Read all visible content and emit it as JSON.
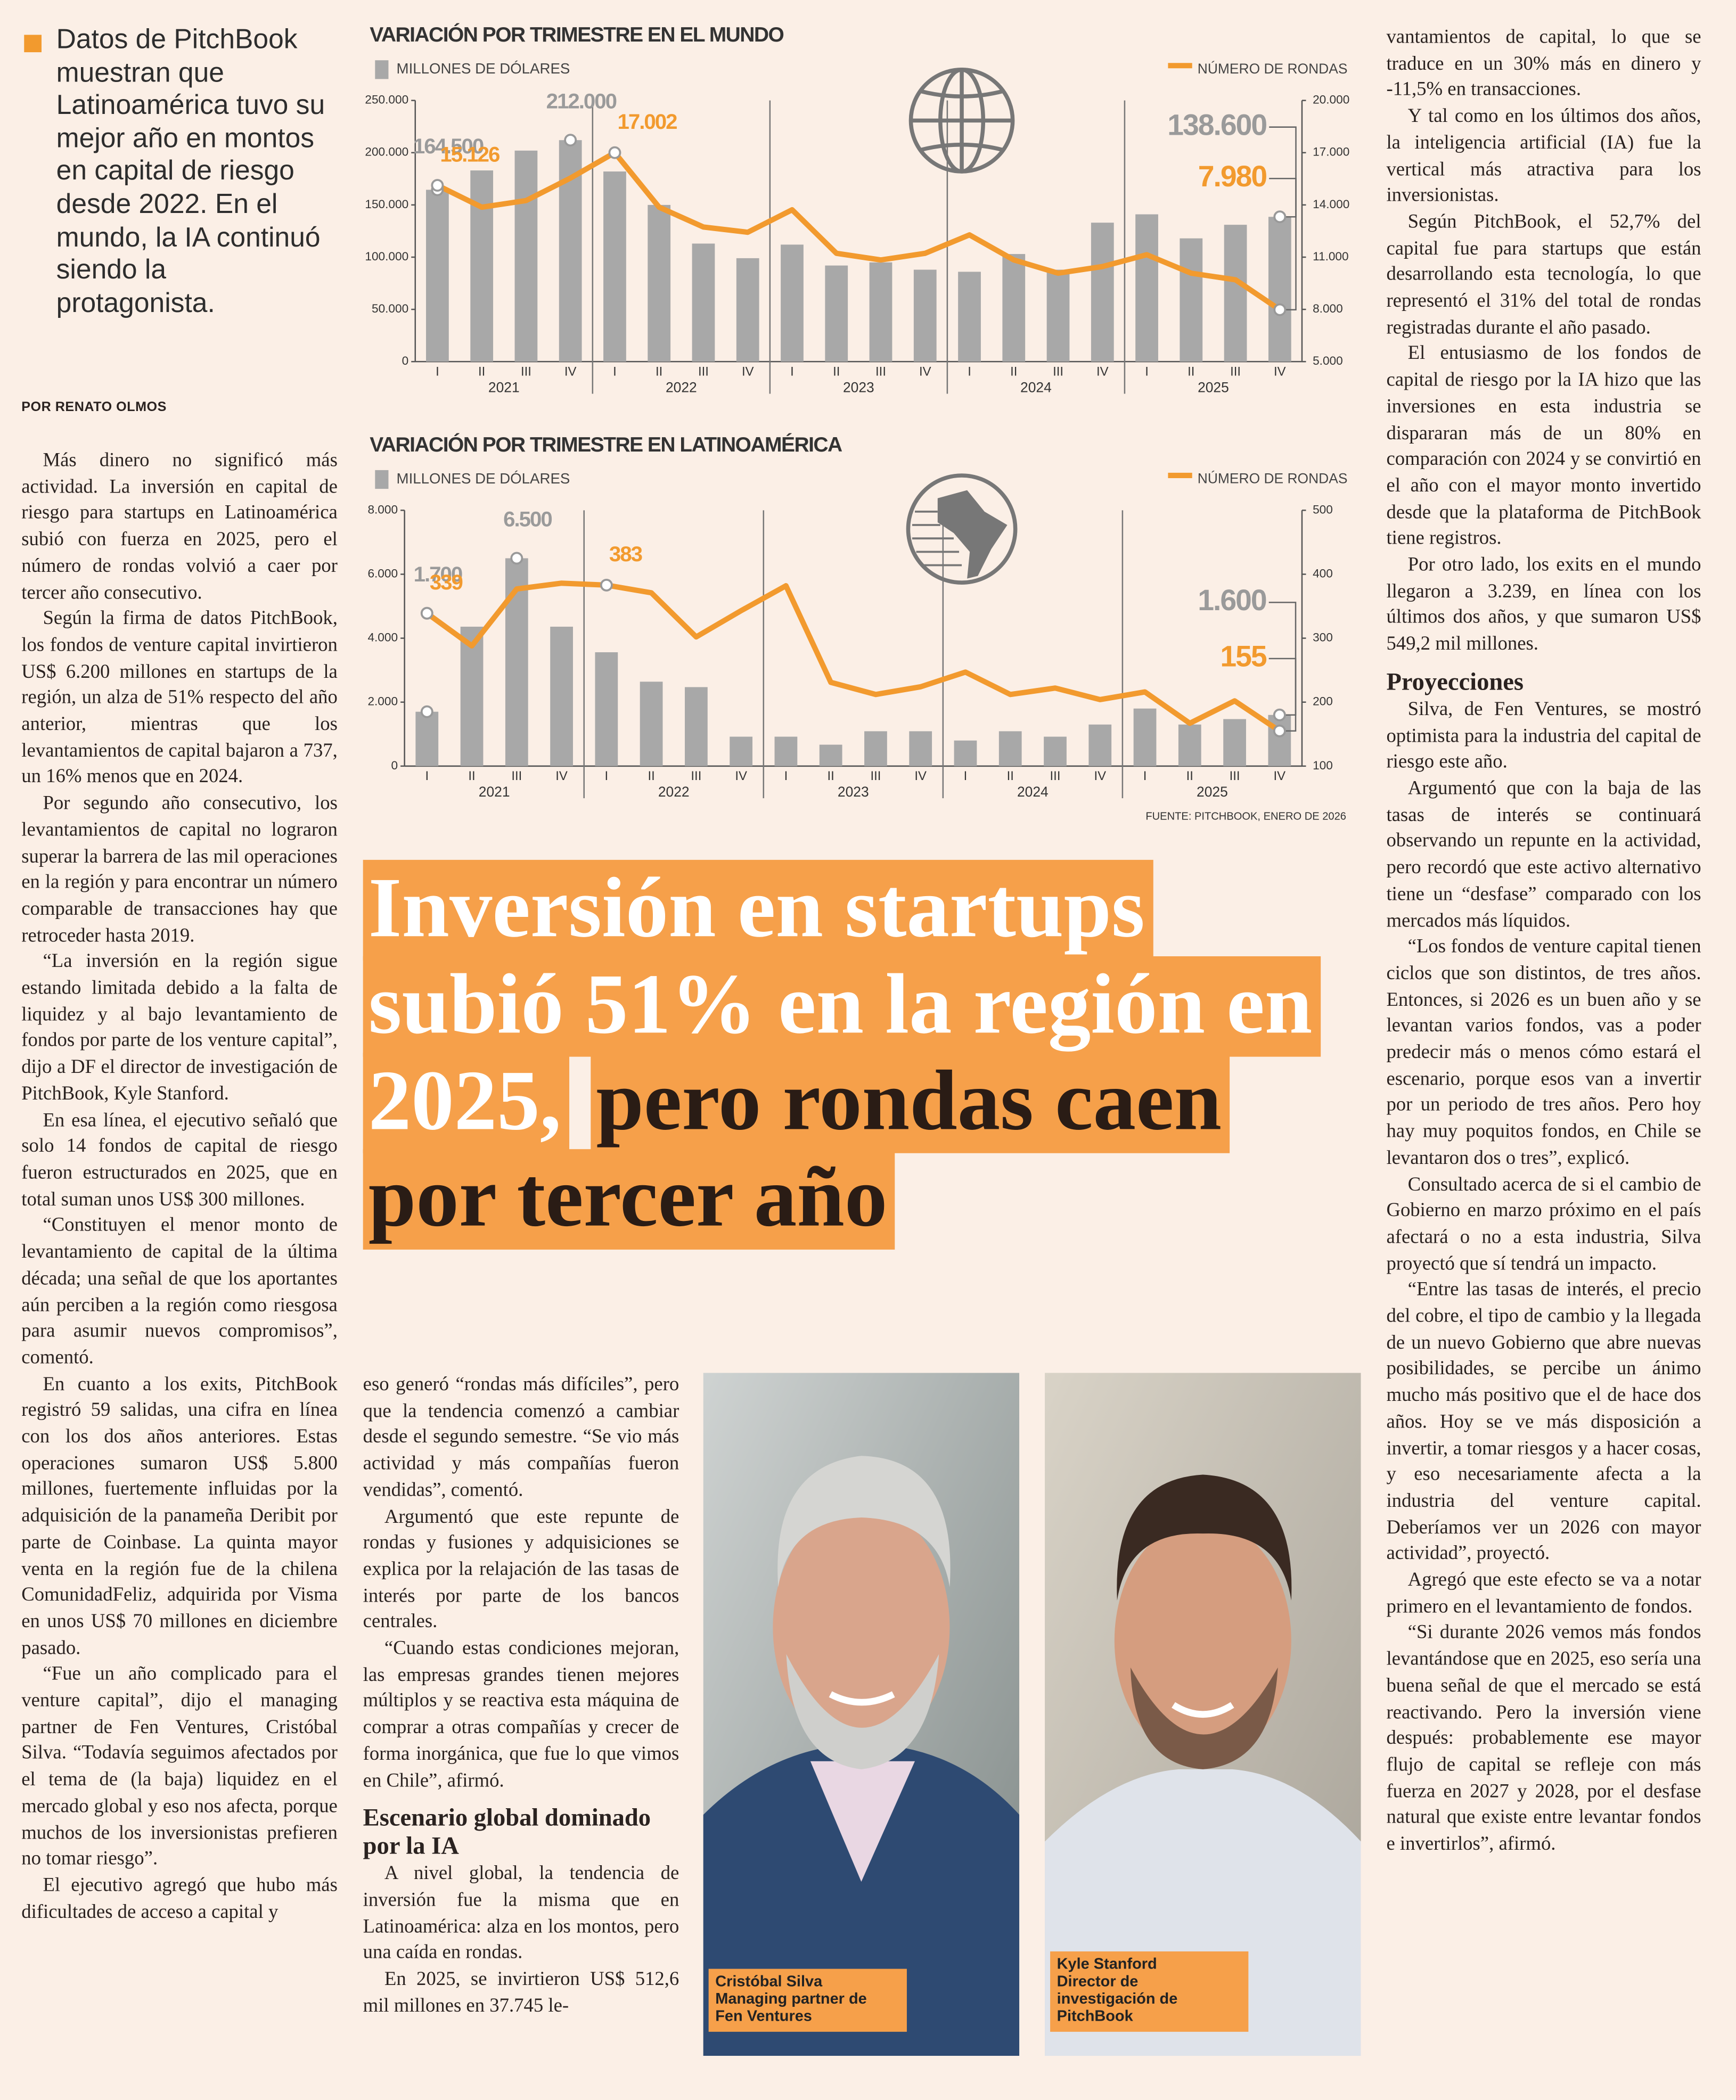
{
  "intro": "Datos de PitchBook muestran que Latinoamérica tuvo su mejor año en montos en capital de riesgo desde 2022. En el mundo, la IA continuó siendo la protagonista.",
  "byline": "POR RENATO OLMOS",
  "chart_data": [
    {
      "type": "combo",
      "title": "VARIACIÓN POR TRIMESTRE EN EL MUNDO",
      "categories": [
        "I",
        "II",
        "III",
        "IV",
        "I",
        "II",
        "III",
        "IV",
        "I",
        "II",
        "III",
        "IV",
        "I",
        "II",
        "III",
        "IV",
        "I",
        "II",
        "III",
        "IV"
      ],
      "groups": [
        "2021",
        "2022",
        "2023",
        "2024",
        "2025"
      ],
      "ylim": [
        0,
        250000
      ],
      "yticks": [
        0,
        {
          "value": 50000,
          "label": "50.000"
        },
        {
          "value": 100000,
          "label": "100.000"
        },
        {
          "value": 150000,
          "label": "150.000"
        },
        {
          "value": 200000,
          "label": "200.000"
        },
        {
          "value": 250000,
          "label": "250.000"
        }
      ],
      "y2lim": [
        5000,
        20000
      ],
      "y2ticks": [
        {
          "value": 5000,
          "label": "5.000"
        },
        {
          "value": 8000,
          "label": "8.000"
        },
        {
          "value": 11000,
          "label": "11.000"
        },
        {
          "value": 14000,
          "label": "14.000"
        },
        {
          "value": 17000,
          "label": "17.000"
        },
        {
          "value": 20000,
          "label": "20.000"
        }
      ],
      "series": [
        {
          "name": "MILLONES DE DÓLARES",
          "type": "bar",
          "color": "#a8a8a8",
          "values": [
            164500,
            183000,
            202000,
            212000,
            182000,
            150000,
            113000,
            99000,
            112000,
            92000,
            95000,
            88000,
            86000,
            103000,
            88000,
            133000,
            141000,
            118000,
            131000,
            138600
          ],
          "value_labels": [
            "164.500",
            null,
            null,
            "212.000",
            null,
            null,
            null,
            null,
            null,
            null,
            null,
            null,
            null,
            null,
            null,
            null,
            null,
            null,
            null,
            "138.600"
          ]
        },
        {
          "name": "NÚMERO DE RONDAS",
          "type": "line",
          "axis": "y2",
          "color": "#f29a2e",
          "values": [
            15126,
            13870,
            14250,
            15540,
            17002,
            13870,
            12730,
            12430,
            13720,
            11220,
            10840,
            11220,
            12280,
            10840,
            10080,
            10460,
            11140,
            10080,
            9700,
            7980
          ],
          "value_labels": [
            "15.126",
            null,
            null,
            null,
            "17.002",
            null,
            null,
            null,
            null,
            null,
            null,
            null,
            null,
            null,
            null,
            null,
            null,
            null,
            null,
            "7.980"
          ]
        }
      ],
      "legend": "top"
    },
    {
      "type": "combo",
      "title": "VARIACIÓN POR TRIMESTRE EN LATINOAMÉRICA",
      "categories": [
        "I",
        "II",
        "III",
        "IV",
        "I",
        "II",
        "III",
        "IV",
        "I",
        "II",
        "III",
        "IV",
        "I",
        "II",
        "III",
        "IV",
        "I",
        "II",
        "III",
        "IV"
      ],
      "groups": [
        "2021",
        "2022",
        "2023",
        "2024",
        "2025"
      ],
      "ylim": [
        0,
        8000
      ],
      "yticks": [
        0,
        {
          "value": 2000,
          "label": "2.000"
        },
        {
          "value": 4000,
          "label": "4.000"
        },
        {
          "value": 6000,
          "label": "6.000"
        },
        {
          "value": 8000,
          "label": "8.000"
        }
      ],
      "y2lim": [
        100,
        500
      ],
      "y2ticks": [
        100,
        200,
        300,
        400,
        500
      ],
      "series": [
        {
          "name": "MILLONES DE DÓLARES",
          "type": "bar",
          "color": "#a8a8a8",
          "values": [
            1700,
            4360,
            6500,
            4360,
            3560,
            2640,
            2470,
            920,
            920,
            670,
            1090,
            1090,
            800,
            1090,
            920,
            1300,
            1800,
            1300,
            1470,
            1600
          ],
          "value_labels": [
            "1.700",
            null,
            "6.500",
            null,
            null,
            null,
            null,
            null,
            null,
            null,
            null,
            null,
            null,
            null,
            null,
            null,
            null,
            null,
            null,
            "1.600"
          ]
        },
        {
          "name": "NÚMERO DE RONDAS",
          "type": "line",
          "axis": "y2",
          "color": "#f29a2e",
          "values": [
            339,
            288,
            377,
            386,
            383,
            371,
            302,
            343,
            382,
            231,
            212,
            224,
            247,
            212,
            222,
            204,
            216,
            167,
            202,
            155
          ],
          "value_labels": [
            "339",
            null,
            null,
            null,
            "383",
            null,
            null,
            null,
            null,
            null,
            null,
            null,
            null,
            null,
            null,
            null,
            null,
            null,
            null,
            "155"
          ]
        }
      ],
      "legend": "top",
      "source": "FUENTE: PITCHBOOK, ENERO DE 2026"
    }
  ],
  "headline": {
    "highlight": "Inversión en startups subió 51% en la región en 2025,",
    "rest": "pero rondas caen por tercer año"
  },
  "left_column": [
    "Más dinero no significó más actividad. La inversión en capital de riesgo para startups en Latinoamérica subió con fuerza en 2025, pero el número de rondas volvió a caer por tercer año consecutivo.",
    "Según la firma de datos PitchBook, los fondos de venture capital invirtieron US$ 6.200 millones en startups de la región, un alza de 51% respecto del año anterior, mientras que los levantamientos de capital bajaron a 737, un 16% menos que en 2024.",
    "Por segundo año consecutivo, los levantamientos de capital no lograron superar la barrera de las mil operaciones en la región y para encontrar un número comparable de transacciones hay que retroceder hasta 2019.",
    "“La inversión en la región sigue estando limitada debido a la falta de liquidez y al bajo levantamiento de fondos por parte de los venture capital”, dijo a DF el director de investigación de PitchBook, Kyle Stanford.",
    "En esa línea, el ejecutivo señaló que solo 14 fondos de capital de riesgo fueron estructurados en 2025, que en total suman unos US$ 300 millones.",
    "“Constituyen el menor monto de levantamiento de capital de la última década; una señal de que los aportantes aún perciben a la región como riesgosa para asumir nuevos compromisos”, comentó.",
    "En cuanto a los exits, PitchBook registró 59 salidas, una cifra en línea con los dos años anteriores. Estas operaciones sumaron US$ 5.800 millones, fuertemente influidas por la adquisición de la panameña Deribit por parte de Coinbase. La quinta mayor venta en la región fue de la chilena ComunidadFeliz, adquirida por Visma en unos US$ 70 millones en diciembre pasado.",
    "“Fue un año complicado para el venture capital”, dijo el managing partner de Fen Ventures, Cristóbal Silva. “Todavía seguimos afectados por el tema de (la baja) liquidez en el mercado global y eso nos afecta, porque muchos de los inversionistas prefieren no tomar riesgo”.",
    "El ejecutivo agregó que hubo más dificultades de acceso a capital y"
  ],
  "middle_column": {
    "before": [
      "eso generó “rondas más difíciles”, pero que la tendencia comenzó a cambiar desde el segundo semestre. “Se vio más actividad y más compañías fueron vendidas”, comentó.",
      "Argumentó que este repunte de rondas y fusiones y adquisiciones se explica por la relajación de las tasas de interés por parte de los bancos centrales.",
      "“Cuando estas condiciones mejoran, las empresas grandes tienen mejores múltiplos y se reactiva esta máquina de comprar a otras compañías y crecer de forma inorgánica, que fue lo que vimos en Chile”, afirmó."
    ],
    "heading": "Escenario global dominado por la IA",
    "after": [
      "A nivel global, la tendencia de inversión fue la misma que en Latinoamérica: alza en los montos, pero una caída en rondas.",
      "En 2025, se invirtieron US$ 512,6 mil millones en 37.745 le-"
    ]
  },
  "right_column": {
    "before": [
      "vantamientos de capital, lo que se traduce en un 30% más en dinero y -11,5% en transacciones.",
      "Y tal como en los últimos dos años, la inteligencia artificial (IA) fue la vertical más atractiva para los inversionistas.",
      "Según PitchBook, el 52,7% del capital fue para startups que están desarrollando esta tecnología, lo que representó el 31% del total de rondas registradas durante el año pasado.",
      "El entusiasmo de los fondos de capital de riesgo por la IA hizo que las inversiones en esta industria se dispararan más de un 80% en comparación con 2024 y se convirtió en el año con el mayor monto invertido desde que la plataforma de PitchBook tiene registros.",
      "Por otro lado, los exits en el mundo llegaron a 3.239, en línea con los últimos dos años, y que sumaron US$ 549,2 mil millones."
    ],
    "heading": "Proyecciones",
    "after": [
      "Silva, de Fen Ventures, se mostró optimista para la industria del capital de riesgo este año.",
      "Argumentó que con la baja de las tasas de interés se continuará observando un repunte en la actividad, pero recordó que este activo alternativo tiene un “desfase” comparado con los mercados más líquidos.",
      "“Los fondos de venture capital tienen ciclos que son distintos, de tres años. Entonces, si 2026 es un buen año y se levantan varios fondos, vas a poder predecir más o menos cómo estará el escenario, porque esos van a invertir por un periodo de tres años. Pero hoy hay muy poquitos fondos, en Chile se levantaron dos o tres”, explicó.",
      "Consultado acerca de si el cambio de Gobierno en marzo próximo en el país afectará o no a esta industria, Silva proyectó que sí tendrá un impacto.",
      "“Entre las tasas de interés, el precio del cobre, el tipo de cambio y la llegada de un nuevo Gobierno que abre nuevas posibilidades, se percibe un ánimo mucho más positivo que el de hace dos años. Hoy se ve más disposición a invertir, a tomar riesgos y a hacer cosas, y eso necesariamente afecta a la industria del venture capital. Deberíamos ver un 2026 con mayor actividad”, proyectó.",
      "Agregó que este efecto se va a notar primero en el levantamiento de fondos.",
      "“Si durante 2026 vemos más fondos levantándose que en 2025, eso sería una buena señal de que el mercado se está reactivando. Pero la inversión viene después: probablemente ese mayor flujo de capital se refleje con más fuerza en 2027 y 2028, por el desfase natural que existe entre levantar fondos e invertirlos”, afirmó."
    ]
  },
  "photos": [
    {
      "name": "Cristóbal Silva",
      "role": "Managing partner de Fen Ventures"
    },
    {
      "name": "Kyle Stanford",
      "role": "Director de investigación de PitchBook"
    }
  ]
}
